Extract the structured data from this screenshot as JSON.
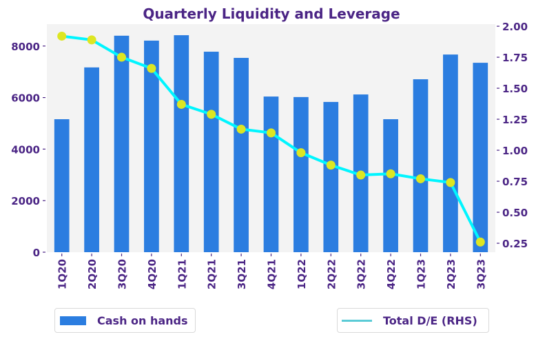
{
  "chart_data": {
    "type": "bar+line",
    "title": "Quarterly Liquidity and Leverage",
    "categories": [
      "1Q20",
      "2Q20",
      "3Q20",
      "4Q20",
      "1Q21",
      "2Q21",
      "3Q21",
      "4Q21",
      "1Q22",
      "2Q22",
      "3Q22",
      "4Q22",
      "1Q23",
      "2Q23",
      "3Q23"
    ],
    "series": [
      {
        "name": "Cash on hands",
        "type": "bar",
        "axis": "left",
        "color": "#2b7de0",
        "values": [
          5160,
          7170,
          8400,
          8210,
          8420,
          7780,
          7540,
          6040,
          6020,
          5830,
          6120,
          5160,
          6710,
          7670,
          7350
        ]
      },
      {
        "name": "Total D/E (RHS)",
        "type": "line",
        "axis": "right",
        "color": "#00f5ff",
        "marker_color": "#dde622",
        "legend_color": "#5bcbd6",
        "values": [
          1.92,
          1.89,
          1.75,
          1.66,
          1.37,
          1.29,
          1.17,
          1.14,
          0.98,
          0.88,
          0.8,
          0.81,
          0.77,
          0.74,
          0.26
        ]
      }
    ],
    "left_axis": {
      "ticks": [
        0,
        2000,
        4000,
        6000,
        8000
      ],
      "tick_labels": [
        "0",
        "2000",
        "4000",
        "6000",
        "8000"
      ],
      "ylim": [
        0,
        8850
      ]
    },
    "right_axis": {
      "ticks": [
        0.25,
        0.5,
        0.75,
        1.0,
        1.25,
        1.5,
        1.75,
        2.0
      ],
      "tick_labels": [
        "0.25",
        "0.50",
        "0.75",
        "1.00",
        "1.25",
        "1.50",
        "1.75",
        "2.00"
      ],
      "ylim": [
        0.178,
        2.017
      ]
    },
    "xlabel": "",
    "ylabel": "",
    "grid": false,
    "plot_background": "#f3f3f3",
    "text_color": "#4b2585",
    "legend": [
      {
        "label": "Cash on hands",
        "placement": "bottom-left"
      },
      {
        "label": "Total D/E (RHS)",
        "placement": "bottom-right"
      }
    ]
  }
}
